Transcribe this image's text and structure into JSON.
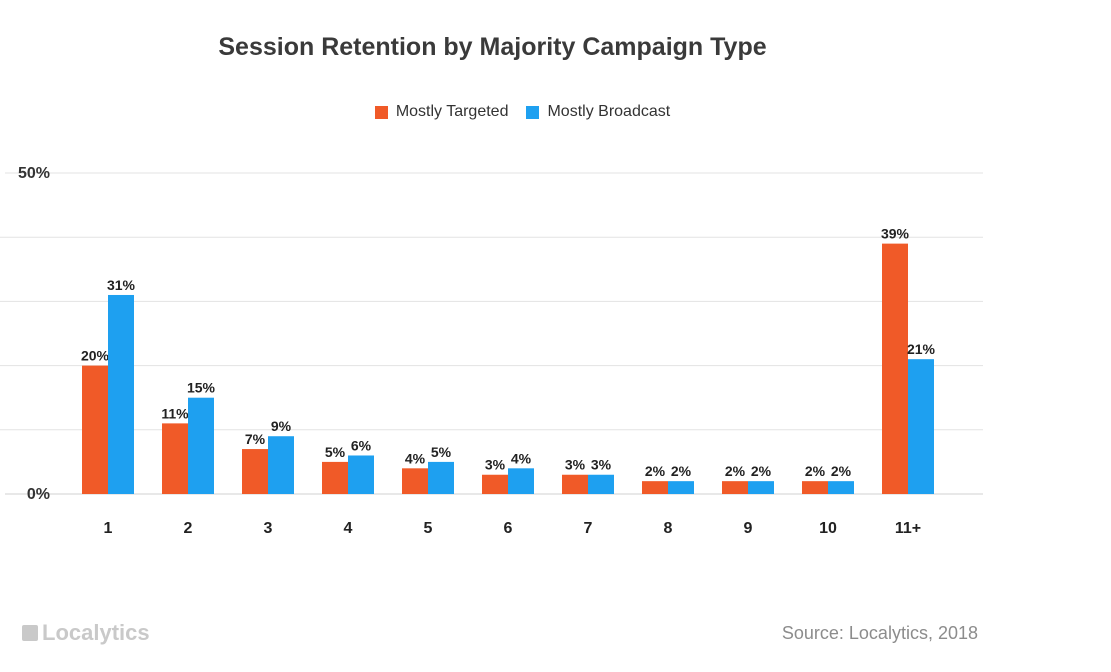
{
  "chart_data": {
    "type": "bar",
    "title": "Session Retention by Majority Campaign Type",
    "categories": [
      "1",
      "2",
      "3",
      "4",
      "5",
      "6",
      "7",
      "8",
      "9",
      "10",
      "11+"
    ],
    "series": [
      {
        "name": "Mostly Targeted",
        "color": "#f05a28",
        "values": [
          20,
          11,
          7,
          5,
          4,
          3,
          3,
          2,
          2,
          2,
          39
        ],
        "labels": [
          "20%",
          "11%",
          "7%",
          "5%",
          "4%",
          "3%",
          "3%",
          "2%",
          "2%",
          "2%",
          "39%"
        ]
      },
      {
        "name": "Mostly Broadcast",
        "color": "#1ea0f0",
        "values": [
          31,
          15,
          9,
          6,
          5,
          4,
          3,
          2,
          2,
          2,
          21
        ],
        "labels": [
          "31%",
          "15%",
          "9%",
          "6%",
          "5%",
          "4%",
          "3%",
          "2%",
          "2%",
          "2%",
          "21%"
        ]
      }
    ],
    "ylim": [
      0,
      50
    ],
    "y_ticks": [
      {
        "value": 50,
        "label": "50%"
      },
      {
        "value": 40,
        "label": ""
      },
      {
        "value": 30,
        "label": ""
      },
      {
        "value": 20,
        "label": ""
      },
      {
        "value": 10,
        "label": ""
      },
      {
        "value": 0,
        "label": "0%"
      }
    ],
    "grid": true,
    "legend_position": "top-center",
    "xlabel": "",
    "ylabel": ""
  },
  "footer": {
    "logo_text": "Localytics",
    "source_text": "Source: Localytics, 2018"
  }
}
